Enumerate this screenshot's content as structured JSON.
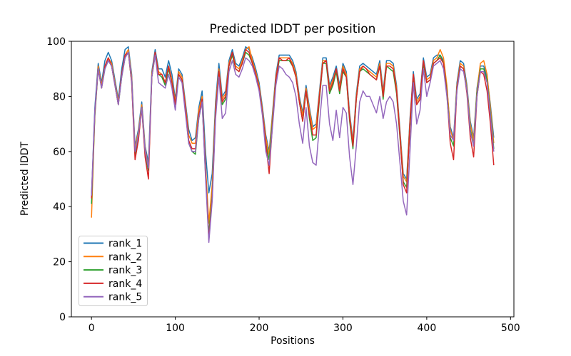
{
  "chart_data": {
    "type": "line",
    "title": "Predicted lDDT per position",
    "xlabel": "Positions",
    "ylabel": "Predicted lDDT",
    "xlim": [
      -24,
      504
    ],
    "ylim": [
      0,
      100
    ],
    "x_ticks": [
      0,
      100,
      200,
      300,
      400,
      500
    ],
    "y_ticks": [
      0,
      20,
      40,
      60,
      80,
      100
    ],
    "grid": false,
    "legend_position": "lower left",
    "x": [
      0,
      4,
      8,
      12,
      16,
      20,
      24,
      28,
      32,
      36,
      40,
      44,
      48,
      52,
      56,
      60,
      64,
      68,
      72,
      76,
      80,
      84,
      88,
      92,
      96,
      100,
      104,
      108,
      112,
      116,
      120,
      124,
      128,
      132,
      136,
      140,
      144,
      148,
      152,
      156,
      160,
      164,
      168,
      172,
      176,
      180,
      184,
      188,
      192,
      196,
      200,
      204,
      208,
      212,
      216,
      220,
      224,
      228,
      232,
      236,
      240,
      244,
      248,
      252,
      256,
      260,
      264,
      268,
      272,
      276,
      280,
      284,
      288,
      292,
      296,
      300,
      304,
      308,
      312,
      316,
      320,
      324,
      328,
      332,
      336,
      340,
      344,
      348,
      352,
      356,
      360,
      364,
      368,
      372,
      376,
      380,
      384,
      388,
      392,
      396,
      400,
      404,
      408,
      412,
      416,
      420,
      424,
      428,
      432,
      436,
      440,
      444,
      448,
      452,
      456,
      460,
      464,
      468,
      472,
      476,
      480
    ],
    "series": [
      {
        "name": "rank_1",
        "color": "#1f77b4",
        "values": [
          44,
          76,
          92,
          85,
          93,
          96,
          93,
          86,
          79,
          90,
          97,
          98,
          88,
          62,
          68,
          78,
          62,
          56,
          89,
          97,
          90,
          90,
          87,
          93,
          88,
          79,
          90,
          88,
          78,
          68,
          64,
          65,
          76,
          82,
          60,
          45,
          52,
          78,
          92,
          80,
          82,
          93,
          97,
          92,
          91,
          94,
          98,
          97,
          94,
          90,
          85,
          76,
          66,
          60,
          74,
          88,
          95,
          95,
          95,
          95,
          93,
          89,
          80,
          74,
          84,
          76,
          69,
          70,
          82,
          94,
          94,
          84,
          87,
          91,
          84,
          92,
          89,
          74,
          64,
          81,
          91,
          92,
          91,
          90,
          89,
          88,
          93,
          82,
          93,
          93,
          92,
          84,
          68,
          52,
          50,
          72,
          89,
          79,
          81,
          94,
          87,
          88,
          94,
          95,
          95,
          93,
          83,
          69,
          65,
          85,
          93,
          92,
          84,
          71,
          65,
          83,
          91,
          91,
          87,
          77,
          65
        ]
      },
      {
        "name": "rank_2",
        "color": "#ff7f0e",
        "values": [
          36,
          74,
          91,
          84,
          91,
          94,
          92,
          85,
          78,
          88,
          95,
          97,
          87,
          61,
          67,
          77,
          61,
          54,
          88,
          96,
          89,
          88,
          85,
          91,
          86,
          78,
          89,
          87,
          77,
          66,
          63,
          63,
          75,
          80,
          55,
          34,
          48,
          76,
          90,
          79,
          81,
          92,
          96,
          91,
          90,
          93,
          97,
          98,
          93,
          89,
          84,
          75,
          65,
          59,
          73,
          87,
          94,
          94,
          94,
          94,
          92,
          88,
          79,
          73,
          83,
          75,
          68,
          69,
          81,
          93,
          93,
          83,
          86,
          90,
          83,
          91,
          88,
          73,
          63,
          80,
          90,
          91,
          90,
          89,
          88,
          87,
          92,
          81,
          92,
          92,
          91,
          83,
          67,
          51,
          49,
          71,
          88,
          78,
          80,
          93,
          86,
          87,
          93,
          94,
          97,
          94,
          84,
          68,
          64,
          84,
          92,
          91,
          83,
          70,
          64,
          82,
          92,
          93,
          88,
          76,
          63
        ]
      },
      {
        "name": "rank_3",
        "color": "#2ca02c",
        "values": [
          41,
          73,
          90,
          83,
          90,
          93,
          91,
          84,
          77,
          87,
          94,
          96,
          85,
          59,
          65,
          76,
          59,
          53,
          87,
          95,
          88,
          87,
          84,
          90,
          85,
          77,
          88,
          86,
          75,
          63,
          60,
          59,
          72,
          78,
          52,
          30,
          44,
          74,
          88,
          77,
          79,
          91,
          95,
          90,
          89,
          92,
          96,
          95,
          92,
          88,
          83,
          74,
          63,
          57,
          71,
          86,
          93,
          93,
          93,
          93,
          91,
          87,
          78,
          71,
          82,
          72,
          64,
          65,
          79,
          92,
          92,
          81,
          84,
          89,
          81,
          89,
          87,
          71,
          61,
          79,
          89,
          90,
          89,
          88,
          87,
          86,
          91,
          79,
          91,
          90,
          89,
          81,
          65,
          49,
          47,
          69,
          87,
          77,
          79,
          92,
          85,
          86,
          92,
          93,
          95,
          92,
          82,
          65,
          62,
          83,
          91,
          90,
          82,
          68,
          62,
          81,
          90,
          90,
          86,
          74,
          61
        ]
      },
      {
        "name": "rank_4",
        "color": "#d62728",
        "values": [
          43,
          74,
          90,
          83,
          91,
          94,
          91,
          84,
          77,
          88,
          95,
          96,
          85,
          57,
          64,
          76,
          58,
          50,
          87,
          96,
          88,
          88,
          85,
          91,
          85,
          77,
          88,
          86,
          76,
          64,
          61,
          61,
          73,
          79,
          53,
          28,
          43,
          74,
          89,
          78,
          80,
          91,
          96,
          90,
          89,
          92,
          97,
          96,
          92,
          88,
          83,
          74,
          63,
          52,
          70,
          86,
          94,
          93,
          93,
          94,
          91,
          87,
          78,
          71,
          82,
          73,
          66,
          66,
          80,
          92,
          93,
          82,
          85,
          90,
          82,
          90,
          87,
          72,
          62,
          79,
          89,
          91,
          90,
          88,
          87,
          86,
          91,
          80,
          91,
          91,
          90,
          82,
          66,
          48,
          45,
          70,
          88,
          77,
          79,
          93,
          85,
          86,
          92,
          93,
          94,
          92,
          81,
          63,
          57,
          83,
          91,
          90,
          81,
          65,
          58,
          80,
          89,
          88,
          82,
          70,
          55
        ]
      },
      {
        "name": "rank_5",
        "color": "#9467bd",
        "values": [
          44,
          75,
          90,
          83,
          90,
          93,
          91,
          84,
          77,
          87,
          94,
          96,
          86,
          60,
          66,
          76,
          60,
          54,
          87,
          95,
          85,
          84,
          83,
          88,
          83,
          75,
          87,
          85,
          74,
          63,
          60,
          60,
          72,
          78,
          51,
          27,
          42,
          72,
          87,
          72,
          74,
          89,
          93,
          88,
          87,
          90,
          94,
          93,
          91,
          87,
          82,
          73,
          60,
          55,
          69,
          84,
          91,
          90,
          88,
          87,
          85,
          80,
          70,
          63,
          76,
          62,
          56,
          55,
          70,
          84,
          84,
          70,
          64,
          75,
          65,
          76,
          74,
          58,
          48,
          62,
          78,
          82,
          80,
          80,
          77,
          74,
          80,
          72,
          78,
          80,
          78,
          70,
          56,
          42,
          37,
          60,
          85,
          70,
          75,
          90,
          80,
          85,
          91,
          92,
          93,
          90,
          80,
          66,
          64,
          82,
          90,
          89,
          82,
          67,
          62,
          80,
          89,
          89,
          85,
          73,
          60
        ]
      }
    ]
  }
}
